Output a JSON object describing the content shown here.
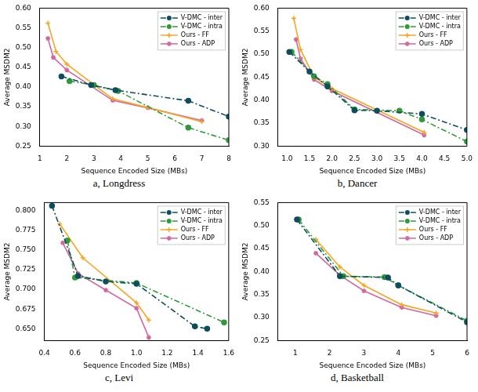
{
  "chart_data": [
    {
      "type": "line",
      "title": "a, Longdress",
      "x_label": "Sequence Encoded Size (MBs)",
      "y_label": "Average MSDM2",
      "xlim": [
        1,
        8
      ],
      "xticks": [
        1,
        2,
        3,
        4,
        5,
        6,
        7,
        8
      ],
      "ylim": [
        0.25,
        0.6
      ],
      "yticks": [
        0.25,
        {
          "value": 0.3,
          "label": "0.30"
        },
        0.35,
        {
          "value": 0.4,
          "label": "0.40"
        },
        0.45,
        {
          "value": 0.5,
          "label": "0.50"
        },
        0.55,
        {
          "value": 0.6,
          "label": "0.60"
        }
      ],
      "grid": false,
      "legend": "upper right",
      "series": [
        {
          "name": "V-DMC - inter",
          "color": "#0e4d5c",
          "marker": "circle",
          "line_style": "dashdot",
          "x": [
            1.8,
            2.9,
            3.8,
            6.5,
            8.0
          ],
          "values": [
            0.427,
            0.405,
            0.392,
            0.365,
            0.325
          ]
        },
        {
          "name": "V-DMC - intra",
          "color": "#2e9a3a",
          "marker": "circle",
          "line_style": "dashdot",
          "x": [
            2.1,
            3.0,
            3.9,
            6.5,
            8.0
          ],
          "values": [
            0.415,
            0.405,
            0.39,
            0.297,
            0.265
          ]
        },
        {
          "name": "Ours - FF",
          "color": "#f5a623",
          "marker": "plus",
          "line_style": "solid",
          "x": [
            1.3,
            1.6,
            2.0,
            3.7,
            5.0,
            7.0
          ],
          "values": [
            0.562,
            0.49,
            0.458,
            0.37,
            0.348,
            0.312
          ]
        },
        {
          "name": "Ours - ADP",
          "color": "#d2679e",
          "marker": "star",
          "line_style": "solid",
          "x": [
            1.3,
            1.5,
            2.0,
            3.7,
            5.0,
            7.0
          ],
          "values": [
            0.523,
            0.475,
            0.443,
            0.366,
            0.347,
            0.315
          ]
        }
      ]
    },
    {
      "type": "line",
      "title": "b, Dancer",
      "x_label": "Sequence Encoded Size (MBs)",
      "y_label": "Average MSDM2",
      "xlim": [
        0.8,
        5.0
      ],
      "xticks": [
        {
          "value": 1,
          "label": "1.0"
        },
        1.5,
        {
          "value": 2,
          "label": "2.0"
        },
        2.5,
        {
          "value": 3,
          "label": "3.0"
        },
        3.5,
        {
          "value": 4,
          "label": "4.0"
        },
        4.5,
        {
          "value": 5,
          "label": "5.0"
        }
      ],
      "ylim": [
        0.3,
        0.6
      ],
      "yticks": [
        {
          "value": 0.3,
          "label": "0.30"
        },
        0.35,
        {
          "value": 0.4,
          "label": "0.40"
        },
        0.45,
        {
          "value": 0.5,
          "label": "0.50"
        },
        0.55,
        {
          "value": 0.6,
          "label": "0.60"
        }
      ],
      "grid": false,
      "legend": "upper right",
      "series": [
        {
          "name": "V-DMC - inter",
          "color": "#0e4d5c",
          "marker": "circle",
          "line_style": "dashdot",
          "x": [
            1.05,
            1.5,
            1.9,
            2.5,
            3.0,
            4.0,
            5.0
          ],
          "values": [
            0.505,
            0.462,
            0.43,
            0.378,
            0.377,
            0.37,
            0.335
          ]
        },
        {
          "name": "V-DMC - intra",
          "color": "#2e9a3a",
          "marker": "circle",
          "line_style": "dashdot",
          "x": [
            1.1,
            1.6,
            1.9,
            2.5,
            3.5,
            4.0,
            5.0
          ],
          "values": [
            0.505,
            0.452,
            0.435,
            0.38,
            0.377,
            0.358,
            0.31
          ]
        },
        {
          "name": "Ours - FF",
          "color": "#f5a623",
          "marker": "plus",
          "line_style": "solid",
          "x": [
            1.15,
            1.3,
            1.6,
            2.0,
            4.05
          ],
          "values": [
            0.578,
            0.51,
            0.45,
            0.425,
            0.33
          ]
        },
        {
          "name": "Ours - ADP",
          "color": "#d2679e",
          "marker": "star",
          "line_style": "solid",
          "x": [
            1.2,
            1.3,
            1.6,
            2.0,
            4.05
          ],
          "values": [
            0.532,
            0.49,
            0.445,
            0.42,
            0.324
          ]
        }
      ]
    },
    {
      "type": "line",
      "title": "c, Levi",
      "x_label": "Sequence Encoded Size (MBs)",
      "y_label": "Average MSDM2",
      "xlim": [
        0.4,
        1.6
      ],
      "xticks": [
        0.4,
        0.6,
        0.8,
        {
          "value": 1,
          "label": "1.0"
        },
        1.2,
        1.4,
        1.6
      ],
      "ylim": [
        0.635,
        0.81
      ],
      "yticks": [
        {
          "value": 0.65,
          "label": "0.650"
        },
        0.675,
        {
          "value": 0.7,
          "label": "0.700"
        },
        0.725,
        {
          "value": 0.75,
          "label": "0.750"
        },
        0.775,
        {
          "value": 0.8,
          "label": "0.800"
        }
      ],
      "grid": false,
      "legend": "upper right",
      "series": [
        {
          "name": "V-DMC - inter",
          "color": "#0e4d5c",
          "marker": "circle",
          "line_style": "dashdot",
          "x": [
            0.45,
            0.62,
            0.8,
            1.0,
            1.38,
            1.46
          ],
          "values": [
            0.806,
            0.717,
            0.71,
            0.707,
            0.653,
            0.65
          ]
        },
        {
          "name": "V-DMC - intra",
          "color": "#2e9a3a",
          "marker": "circle",
          "line_style": "dashdot",
          "x": [
            0.55,
            0.6,
            1.0,
            1.57
          ],
          "values": [
            0.762,
            0.715,
            0.708,
            0.658
          ]
        },
        {
          "name": "Ours - FF",
          "color": "#f5a623",
          "marker": "plus",
          "line_style": "solid",
          "x": [
            0.5,
            0.65,
            1.0,
            1.08
          ],
          "values": [
            0.783,
            0.74,
            0.683,
            0.661
          ]
        },
        {
          "name": "Ours - ADP",
          "color": "#d2679e",
          "marker": "star",
          "line_style": "solid",
          "x": [
            0.52,
            0.62,
            0.8,
            1.0,
            1.08
          ],
          "values": [
            0.759,
            0.72,
            0.699,
            0.676,
            0.639
          ]
        }
      ]
    },
    {
      "type": "line",
      "title": "d, Basketball",
      "x_label": "Sequence Encoded Size (MBs)",
      "y_label": "Average MSDM2",
      "xlim": [
        0.5,
        6
      ],
      "xticks": [
        1,
        2,
        3,
        4,
        5,
        6
      ],
      "ylim": [
        0.25,
        0.55
      ],
      "yticks": [
        0.25,
        {
          "value": 0.3,
          "label": "0.30"
        },
        0.35,
        {
          "value": 0.4,
          "label": "0.40"
        },
        0.45,
        {
          "value": 0.5,
          "label": "0.50"
        },
        0.55
      ],
      "grid": false,
      "legend": "upper right",
      "series": [
        {
          "name": "V-DMC - inter",
          "color": "#0e4d5c",
          "marker": "circle",
          "line_style": "dashdot",
          "x": [
            1.05,
            2.3,
            3.7,
            4.0,
            6.0
          ],
          "values": [
            0.513,
            0.39,
            0.387,
            0.37,
            0.29
          ]
        },
        {
          "name": "V-DMC - intra",
          "color": "#2e9a3a",
          "marker": "circle",
          "line_style": "dashdot",
          "x": [
            1.1,
            2.4,
            3.6,
            4.0,
            6.0
          ],
          "values": [
            0.513,
            0.39,
            0.388,
            0.37,
            0.293
          ]
        },
        {
          "name": "Ours - FF",
          "color": "#f5a623",
          "marker": "plus",
          "line_style": "solid",
          "x": [
            1.6,
            2.3,
            3.0,
            4.1,
            5.1
          ],
          "values": [
            0.47,
            0.41,
            0.37,
            0.328,
            0.31
          ]
        },
        {
          "name": "Ours - ADP",
          "color": "#d2679e",
          "marker": "star",
          "line_style": "solid",
          "x": [
            1.6,
            2.3,
            3.0,
            4.1,
            5.1
          ],
          "values": [
            0.44,
            0.392,
            0.358,
            0.322,
            0.304
          ]
        }
      ]
    }
  ]
}
